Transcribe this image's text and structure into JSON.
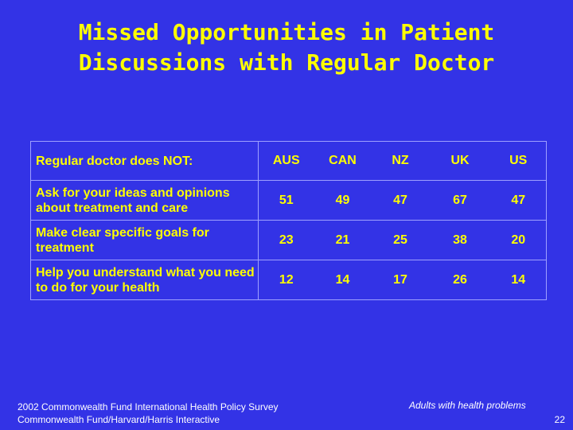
{
  "title": {
    "line1": "Missed Opportunities in Patient",
    "line2": "Discussions with Regular Doctor"
  },
  "table": {
    "header_label": "Regular doctor does NOT:",
    "countries": [
      "AUS",
      "CAN",
      "NZ",
      "UK",
      "US"
    ],
    "rows": [
      {
        "label": "Ask for your ideas and opinions about treatment and care",
        "values": [
          "51",
          "49",
          "47",
          "67",
          "47"
        ]
      },
      {
        "label": "Make clear specific goals for treatment",
        "values": [
          "23",
          "21",
          "25",
          "38",
          "20"
        ]
      },
      {
        "label": "Help you understand what you need to do for your health",
        "values": [
          "12",
          "14",
          "17",
          "26",
          "14"
        ]
      }
    ]
  },
  "footer": {
    "source_line1": "2002 Commonwealth Fund International Health Policy Survey",
    "source_line2": "Commonwealth Fund/Harvard/Harris Interactive",
    "note": "Adults with health problems",
    "page_number": "22"
  },
  "colors": {
    "background": "#3333e6",
    "text": "#ffff00",
    "footer_text": "#ffffff"
  }
}
